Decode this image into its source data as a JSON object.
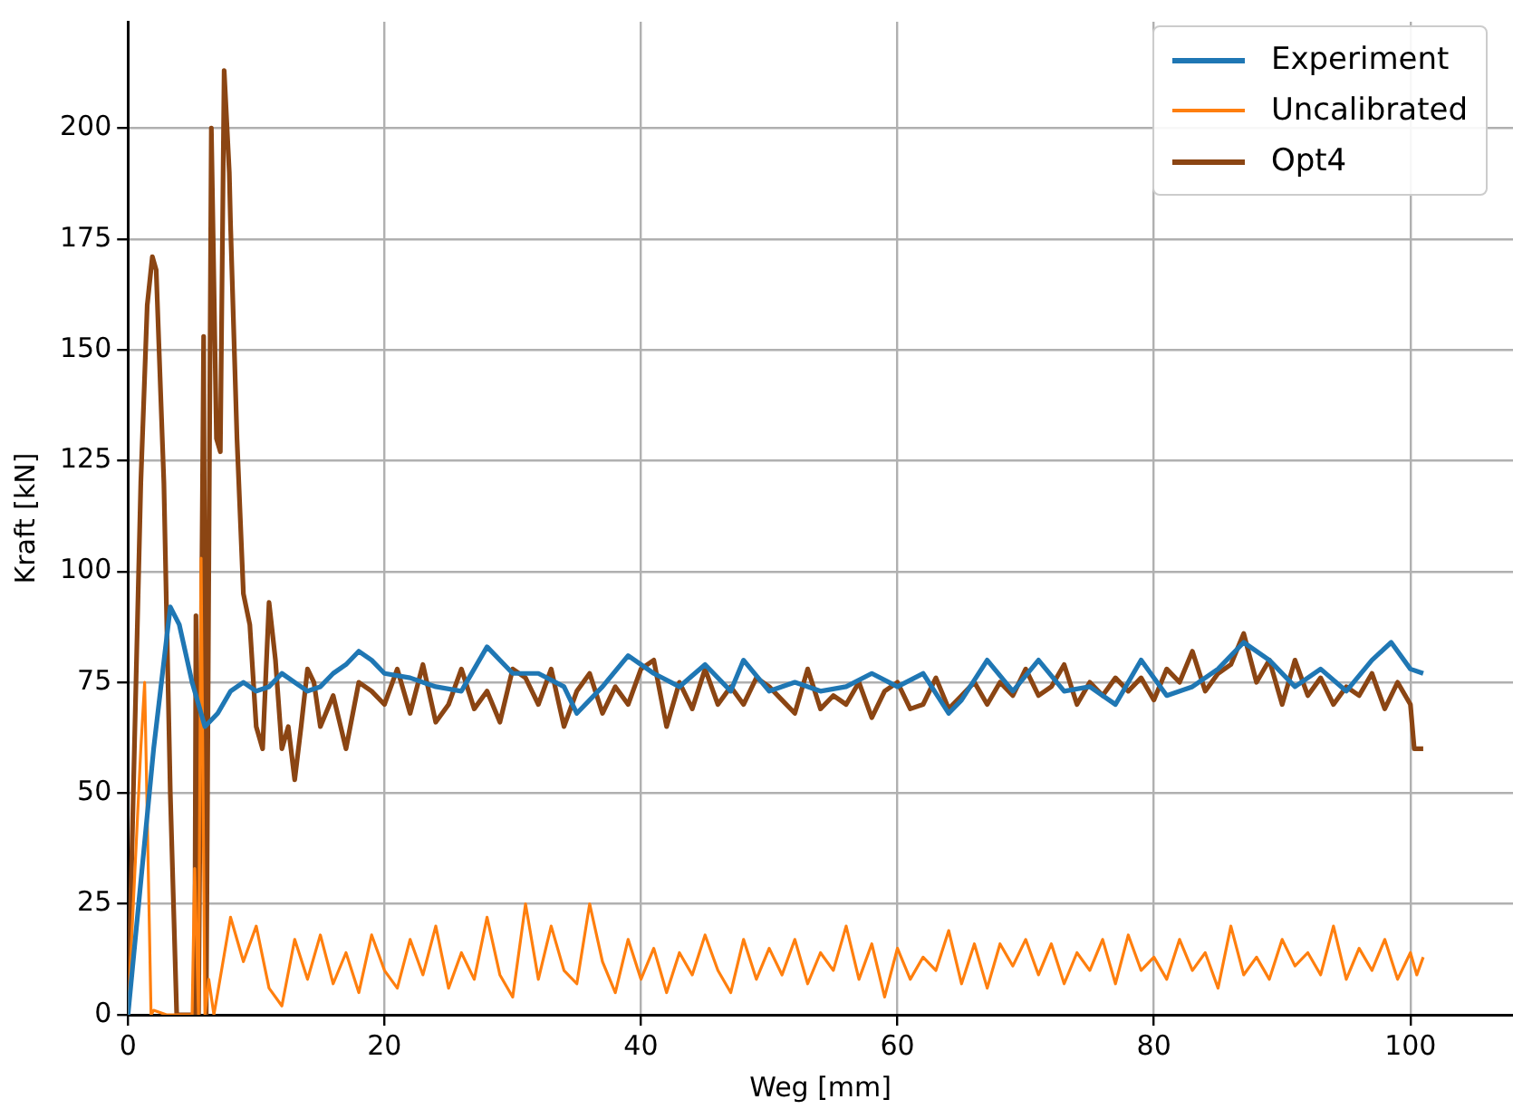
{
  "chart_data": {
    "type": "line",
    "xlabel": "Weg [mm]",
    "ylabel": "Kraft [kN]",
    "xlim": [
      0,
      108
    ],
    "ylim": [
      0,
      224
    ],
    "xticks": [
      0,
      20,
      40,
      60,
      80,
      100
    ],
    "yticks": [
      0,
      25,
      50,
      75,
      100,
      125,
      150,
      175,
      200
    ],
    "grid": true,
    "legend": "top right",
    "marker": "none",
    "line_style": "solid",
    "series": [
      {
        "name": "Experiment",
        "color": "#1f77b4",
        "x": [
          0,
          1,
          2,
          3.3,
          4,
          5,
          6,
          7,
          8,
          9,
          10,
          11,
          12,
          13,
          14,
          15,
          16,
          17,
          18,
          19,
          20,
          22,
          24,
          26,
          28,
          30,
          32,
          34,
          35,
          37,
          39,
          41,
          43,
          45,
          47,
          48,
          50,
          52,
          54,
          56,
          58,
          60,
          62,
          64,
          65,
          67,
          69,
          71,
          73,
          75,
          77,
          79,
          81,
          83,
          85,
          87,
          89,
          91,
          93,
          95,
          97,
          98.5,
          100,
          101
        ],
        "values": [
          0,
          30,
          60,
          92,
          88,
          75,
          65,
          68,
          73,
          75,
          73,
          74,
          77,
          75,
          73,
          74,
          77,
          79,
          82,
          80,
          77,
          76,
          74,
          73,
          83,
          77,
          77,
          74,
          68,
          74,
          81,
          77,
          74,
          79,
          73,
          80,
          73,
          75,
          73,
          74,
          77,
          74,
          77,
          68,
          71,
          80,
          73,
          80,
          73,
          74,
          70,
          80,
          72,
          74,
          78,
          84,
          80,
          74,
          78,
          73,
          80,
          84,
          78,
          77
        ]
      },
      {
        "name": "Uncalibrated",
        "color": "#ff7f0e",
        "x": [
          0,
          0.5,
          1,
          1.3,
          1.6,
          1.8,
          2,
          3,
          4,
          5,
          5.2,
          5.5,
          5.7,
          6,
          6.3,
          6.7,
          7,
          8,
          9,
          10,
          11,
          12,
          13,
          14,
          15,
          16,
          17,
          18,
          19,
          20,
          21,
          22,
          23,
          24,
          25,
          26,
          27,
          28,
          29,
          30,
          31,
          32,
          33,
          34,
          35,
          36,
          37,
          38,
          39,
          40,
          41,
          42,
          43,
          44,
          45,
          46,
          47,
          48,
          49,
          50,
          51,
          52,
          53,
          54,
          55,
          56,
          57,
          58,
          59,
          60,
          61,
          62,
          63,
          64,
          65,
          66,
          67,
          68,
          69,
          70,
          71,
          72,
          73,
          74,
          75,
          76,
          77,
          78,
          79,
          80,
          81,
          82,
          83,
          84,
          85,
          86,
          87,
          88,
          89,
          90,
          91,
          92,
          93,
          94,
          95,
          96,
          97,
          98,
          99,
          100,
          100.5,
          101
        ],
        "values": [
          0,
          30,
          60,
          75,
          30,
          0,
          1,
          0,
          0,
          0,
          33,
          0,
          103,
          0,
          8,
          0,
          5,
          22,
          12,
          20,
          6,
          2,
          17,
          8,
          18,
          7,
          14,
          5,
          18,
          10,
          6,
          17,
          9,
          20,
          6,
          14,
          8,
          22,
          9,
          4,
          25,
          8,
          20,
          10,
          7,
          25,
          12,
          5,
          17,
          8,
          15,
          5,
          14,
          9,
          18,
          10,
          5,
          17,
          8,
          15,
          9,
          17,
          7,
          14,
          10,
          20,
          8,
          16,
          4,
          15,
          8,
          13,
          10,
          19,
          7,
          16,
          6,
          16,
          11,
          17,
          9,
          16,
          7,
          14,
          10,
          17,
          7,
          18,
          10,
          13,
          8,
          17,
          10,
          14,
          6,
          20,
          9,
          13,
          8,
          17,
          11,
          14,
          9,
          20,
          8,
          15,
          10,
          17,
          8,
          14,
          9,
          13
        ]
      },
      {
        "name": "Opt4",
        "color": "#8b4513",
        "x": [
          0,
          0.5,
          1,
          1.5,
          1.9,
          2.2,
          2.8,
          3.3,
          3.8,
          4.5,
          5.2,
          5.3,
          5.5,
          5.9,
          6.1,
          6.5,
          6.9,
          7.2,
          7.5,
          7.9,
          8,
          8.5,
          9,
          9.5,
          10,
          10.5,
          11,
          11.5,
          12,
          12.5,
          13,
          13.5,
          14,
          14.5,
          15,
          16,
          17,
          18,
          19,
          20,
          21,
          22,
          23,
          24,
          25,
          26,
          27,
          28,
          29,
          30,
          31,
          32,
          33,
          34,
          35,
          36,
          37,
          38,
          39,
          40,
          41,
          42,
          43,
          44,
          45,
          46,
          47,
          48,
          49,
          50,
          51,
          52,
          53,
          54,
          55,
          56,
          57,
          58,
          59,
          60,
          61,
          62,
          63,
          64,
          65,
          66,
          67,
          68,
          69,
          70,
          71,
          72,
          73,
          74,
          75,
          76,
          77,
          78,
          79,
          80,
          81,
          82,
          83,
          84,
          85,
          86,
          87,
          88,
          89,
          90,
          91,
          92,
          93,
          94,
          95,
          96,
          97,
          98,
          99,
          100,
          100.3,
          101
        ],
        "values": [
          0,
          60,
          120,
          160,
          171,
          168,
          120,
          50,
          0,
          0,
          0,
          90,
          0,
          153,
          0,
          200,
          130,
          127,
          213,
          190,
          178,
          130,
          95,
          88,
          65,
          60,
          93,
          80,
          60,
          65,
          53,
          65,
          78,
          75,
          65,
          72,
          60,
          75,
          73,
          70,
          78,
          68,
          79,
          66,
          70,
          78,
          69,
          73,
          66,
          78,
          76,
          70,
          78,
          65,
          73,
          77,
          68,
          74,
          70,
          78,
          80,
          65,
          75,
          69,
          78,
          70,
          74,
          70,
          76,
          74,
          71,
          68,
          78,
          69,
          72,
          70,
          75,
          67,
          73,
          75,
          69,
          70,
          76,
          69,
          72,
          75,
          70,
          75,
          72,
          78,
          72,
          74,
          79,
          70,
          75,
          72,
          76,
          73,
          76,
          71,
          78,
          75,
          82,
          73,
          77,
          79,
          86,
          75,
          80,
          70,
          80,
          72,
          76,
          70,
          74,
          72,
          77,
          69,
          75,
          70,
          60,
          60
        ]
      }
    ]
  }
}
